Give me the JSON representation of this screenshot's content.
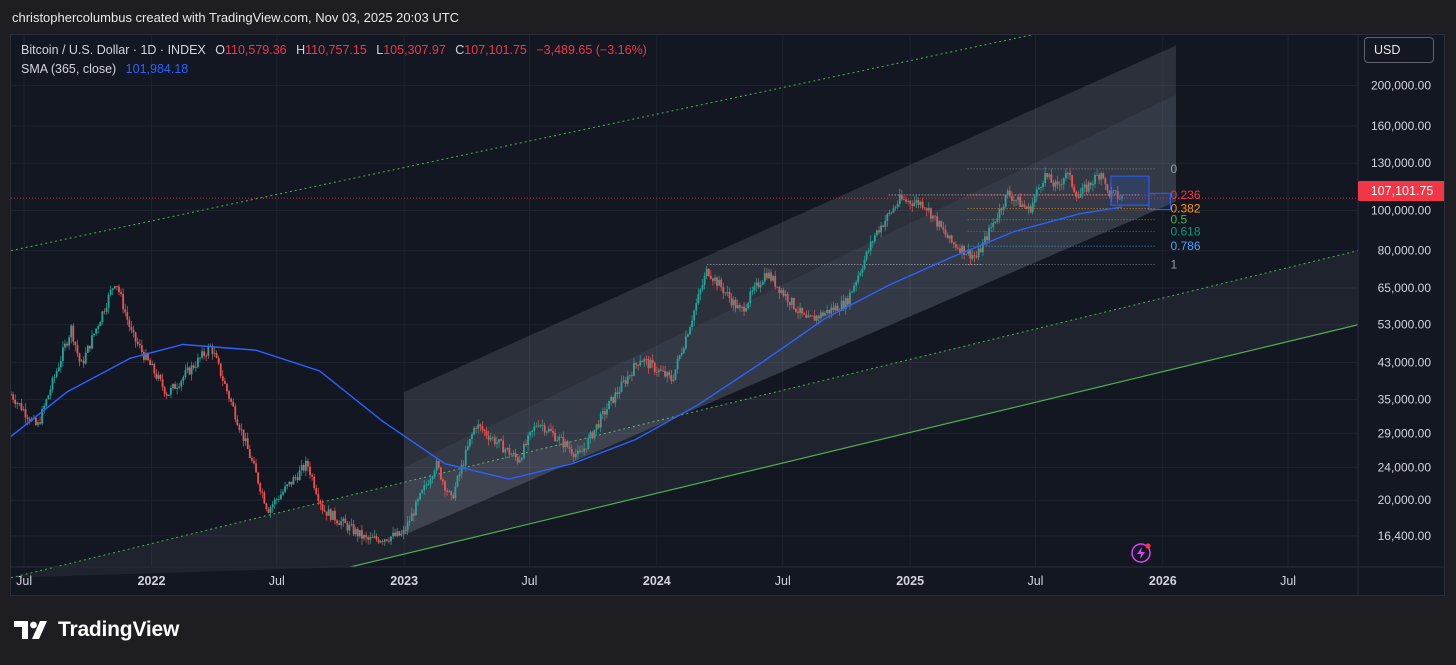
{
  "header": {
    "attribution": "christophercolumbus created with TradingView.com, Nov 03, 2025 20:03 UTC"
  },
  "legend": {
    "symbol": "Bitcoin / U.S. Dollar · 1D · INDEX",
    "open_label": "O",
    "open": "110,579.36",
    "high_label": "H",
    "high": "110,757.15",
    "low_label": "L",
    "low": "105,307.97",
    "close_label": "C",
    "close": "107,101.75",
    "change": "−3,489.65 (−3.16%)",
    "sma_label": "SMA (365, close)",
    "sma_value": "101,984.18"
  },
  "currency_button": "USD",
  "last_price": "107,101.75",
  "brand": "TradingView",
  "colors": {
    "background": "#131722",
    "red": "#f23645",
    "blue_sma": "#2962ff",
    "candle_up": "#26a69a",
    "candle_down": "#ef5350",
    "channel_green": "#4caf50"
  },
  "chart_data": {
    "type": "line",
    "scale": "log",
    "ylim": [
      13800,
      265000
    ],
    "xlim": [
      "2021-06-12",
      "2026-10-10"
    ],
    "y_ticks": [
      "200,000.00",
      "160,000.00",
      "130,000.00",
      "100,000.00",
      "80,000.00",
      "65,000.00",
      "53,000.00",
      "43,000.00",
      "35,000.00",
      "29,000.00",
      "24,000.00",
      "20,000.00",
      "16,400.00"
    ],
    "y_tick_values": [
      200000,
      160000,
      130000,
      100000,
      80000,
      65000,
      53000,
      43000,
      35000,
      29000,
      24000,
      20000,
      16400
    ],
    "x_ticks": [
      {
        "label": "Jul",
        "date": "2021-07-01"
      },
      {
        "label": "2022",
        "date": "2022-01-01"
      },
      {
        "label": "Jul",
        "date": "2022-07-01"
      },
      {
        "label": "2023",
        "date": "2023-01-01"
      },
      {
        "label": "Jul",
        "date": "2023-07-01"
      },
      {
        "label": "2024",
        "date": "2024-01-01"
      },
      {
        "label": "Jul",
        "date": "2024-07-01"
      },
      {
        "label": "2025",
        "date": "2025-01-01"
      },
      {
        "label": "Jul",
        "date": "2025-07-01"
      },
      {
        "label": "2026",
        "date": "2026-01-01"
      },
      {
        "label": "Jul",
        "date": "2026-07-01"
      }
    ],
    "series": [
      {
        "name": "Bitcoin / U.S. Dollar",
        "x": [
          "2021-06-12",
          "2021-07-20",
          "2021-09-07",
          "2021-09-21",
          "2021-11-10",
          "2021-12-04",
          "2022-01-24",
          "2022-03-28",
          "2022-05-12",
          "2022-06-18",
          "2022-08-14",
          "2022-09-06",
          "2022-11-09",
          "2022-12-30",
          "2023-02-16",
          "2023-03-10",
          "2023-04-14",
          "2023-06-15",
          "2023-07-13",
          "2023-09-11",
          "2023-10-24",
          "2023-12-08",
          "2024-01-23",
          "2024-03-14",
          "2024-05-01",
          "2024-06-07",
          "2024-08-05",
          "2024-10-01",
          "2024-11-12",
          "2024-12-17",
          "2025-01-21",
          "2025-02-28",
          "2025-04-07",
          "2025-05-22",
          "2025-06-22",
          "2025-07-14",
          "2025-08-02",
          "2025-08-14",
          "2025-09-01",
          "2025-10-06",
          "2025-10-11",
          "2025-11-03"
        ],
        "values": [
          36000,
          30000,
          52000,
          42000,
          68000,
          50000,
          36000,
          47000,
          29000,
          19000,
          24500,
          19000,
          16000,
          16500,
          24500,
          20000,
          30500,
          25000,
          31000,
          25500,
          34000,
          44000,
          39000,
          72000,
          57000,
          71000,
          54000,
          60000,
          88000,
          106000,
          104000,
          84000,
          77000,
          110000,
          100000,
          122000,
          113000,
          124000,
          108000,
          125000,
          111000,
          107101
        ]
      },
      {
        "name": "SMA (365, close)",
        "x": [
          "2021-06-12",
          "2021-09-01",
          "2021-12-01",
          "2022-02-15",
          "2022-06-01",
          "2022-09-01",
          "2022-12-01",
          "2023-03-01",
          "2023-06-01",
          "2023-09-01",
          "2023-12-01",
          "2024-03-01",
          "2024-06-01",
          "2024-09-01",
          "2024-12-01",
          "2025-03-01",
          "2025-06-01",
          "2025-09-01",
          "2025-11-03"
        ],
        "values": [
          28500,
          36500,
          44000,
          47500,
          46000,
          41000,
          31000,
          24500,
          22500,
          24500,
          28000,
          34000,
          43000,
          55000,
          66000,
          77000,
          89000,
          98000,
          101984
        ]
      }
    ],
    "fibonacci": {
      "levels": [
        "0",
        "0.236",
        "0.382",
        "0.5",
        "0.618",
        "0.786",
        "1"
      ],
      "level_values": [
        126000,
        109000,
        101000,
        95000,
        89000,
        82000,
        74000
      ]
    },
    "annotations": [
      "Regression channel",
      "Parallel channel (green dashed/solid)",
      "Fibonacci retracement",
      "Long position box"
    ]
  }
}
